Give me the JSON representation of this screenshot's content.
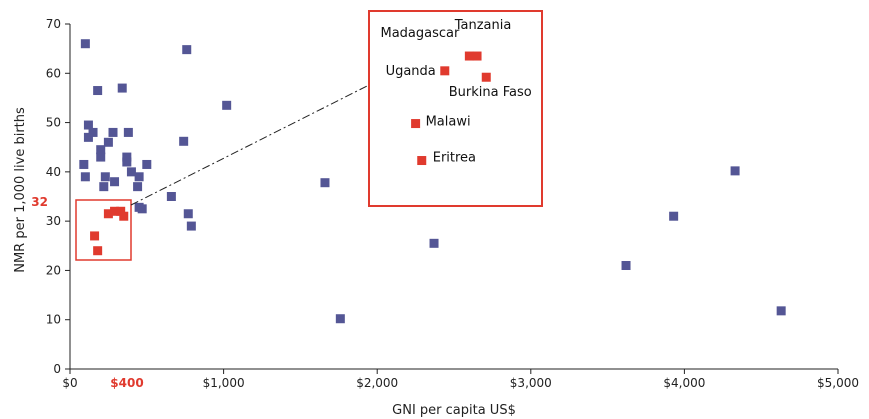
{
  "chart_data": {
    "type": "scatter",
    "xlabel": "GNI per capita US$",
    "ylabel": "NMR per 1,000 live births",
    "xlim": [
      0,
      5000
    ],
    "ylim": [
      0,
      70
    ],
    "x_ticks": [
      {
        "value": 0,
        "label": "$0"
      },
      {
        "value": 1000,
        "label": "$1,000"
      },
      {
        "value": 2000,
        "label": "$2,000"
      },
      {
        "value": 3000,
        "label": "$3,000"
      },
      {
        "value": 4000,
        "label": "$4,000"
      },
      {
        "value": 5000,
        "label": "$5,000"
      }
    ],
    "y_ticks": [
      0,
      10,
      20,
      30,
      40,
      50,
      60,
      70
    ],
    "highlight": {
      "x_value": 400,
      "x_label": "$400",
      "y_value": 32,
      "y_label": "32",
      "color": "#e03a2e"
    },
    "series": [
      {
        "color": "#545695",
        "points": [
          [
            100,
            66
          ],
          [
            760,
            64.8
          ],
          [
            1020,
            53.5
          ],
          [
            340,
            57
          ],
          [
            180,
            56.5
          ],
          [
            120,
            49.5
          ],
          [
            150,
            48
          ],
          [
            280,
            48
          ],
          [
            380,
            48
          ],
          [
            120,
            47
          ],
          [
            250,
            46
          ],
          [
            740,
            46.2
          ],
          [
            200,
            44.5
          ],
          [
            200,
            43
          ],
          [
            370,
            43
          ],
          [
            370,
            42
          ],
          [
            90,
            41.5
          ],
          [
            500,
            41.5
          ],
          [
            400,
            40
          ],
          [
            230,
            39
          ],
          [
            100,
            39
          ],
          [
            450,
            39
          ],
          [
            290,
            38
          ],
          [
            220,
            37
          ],
          [
            440,
            37
          ],
          [
            660,
            35
          ],
          [
            450,
            32.8
          ],
          [
            470,
            32.5
          ],
          [
            770,
            31.5
          ],
          [
            790,
            29
          ],
          [
            1660,
            37.8
          ],
          [
            1760,
            10.2
          ],
          [
            2370,
            25.5
          ],
          [
            3620,
            21
          ],
          [
            3930,
            31
          ],
          [
            4330,
            40.2
          ],
          [
            4630,
            11.8
          ]
        ]
      },
      {
        "color": "#e03a2e",
        "points": [
          [
            250,
            31.5
          ],
          [
            290,
            32
          ],
          [
            330,
            32
          ],
          [
            350,
            31
          ],
          [
            160,
            27
          ],
          [
            180,
            24
          ]
        ]
      }
    ],
    "inset": {
      "points": [
        {
          "name": "Madagascar",
          "x": 2600,
          "y": 63.5
        },
        {
          "name": "Tanzania",
          "x": 2650,
          "y": 63.5
        },
        {
          "name": "Uganda",
          "x": 2440,
          "y": 60.5
        },
        {
          "name": "Burkina Faso",
          "x": 2710,
          "y": 59.2
        },
        {
          "name": "Malawi",
          "x": 2250,
          "y": 49.8
        },
        {
          "name": "Eritrea",
          "x": 2290,
          "y": 42.3
        }
      ]
    }
  }
}
